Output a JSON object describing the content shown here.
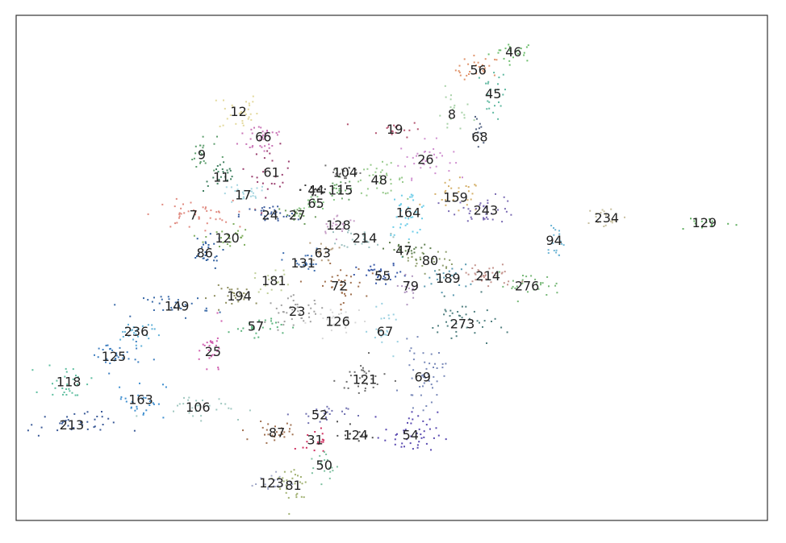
{
  "chart_data": {
    "type": "scatter",
    "title": "",
    "xlabel": "",
    "ylabel": "",
    "axes_visible": false,
    "frame": "box",
    "grid": false,
    "legend": "none",
    "xlim": [
      0,
      100
    ],
    "ylim": [
      0,
      100
    ],
    "clusters": [
      {
        "label": "46",
        "x": 66.2,
        "y": 92.8,
        "color": "#6fbf6f",
        "sx": 1.6,
        "sy": 1.0,
        "n": 22
      },
      {
        "label": "56",
        "x": 61.5,
        "y": 89.2,
        "color": "#e0936b",
        "sx": 1.5,
        "sy": 1.4,
        "n": 26
      },
      {
        "label": "45",
        "x": 63.5,
        "y": 84.5,
        "color": "#5fb8a0",
        "sx": 0.9,
        "sy": 2.5,
        "n": 24
      },
      {
        "label": "8",
        "x": 58.0,
        "y": 80.5,
        "color": "#a8d2a8",
        "sx": 1.4,
        "sy": 2.2,
        "n": 18
      },
      {
        "label": "68",
        "x": 61.7,
        "y": 76.0,
        "color": "#4f5f7f",
        "sx": 0.5,
        "sy": 1.8,
        "n": 12
      },
      {
        "label": "12",
        "x": 29.6,
        "y": 81.0,
        "color": "#e3d99c",
        "sx": 1.3,
        "sy": 2.0,
        "n": 30
      },
      {
        "label": "66",
        "x": 32.9,
        "y": 76.0,
        "color": "#c974b6",
        "sx": 1.6,
        "sy": 1.7,
        "n": 34
      },
      {
        "label": "19",
        "x": 50.4,
        "y": 77.5,
        "color": "#b35470",
        "sx": 1.8,
        "sy": 0.8,
        "n": 18
      },
      {
        "label": "26",
        "x": 54.5,
        "y": 71.5,
        "color": "#cf8fcf",
        "sx": 1.8,
        "sy": 1.8,
        "n": 36
      },
      {
        "label": "9",
        "x": 24.7,
        "y": 72.5,
        "color": "#5e9e6e",
        "sx": 1.0,
        "sy": 2.0,
        "n": 20
      },
      {
        "label": "61",
        "x": 34.0,
        "y": 69.0,
        "color": "#9b3f6f",
        "sx": 1.3,
        "sy": 2.4,
        "n": 24
      },
      {
        "label": "104",
        "x": 43.8,
        "y": 69.0,
        "color": "#707070",
        "sx": 1.5,
        "sy": 1.0,
        "n": 22
      },
      {
        "label": "48",
        "x": 48.3,
        "y": 67.5,
        "color": "#96c98a",
        "sx": 1.7,
        "sy": 1.5,
        "n": 36
      },
      {
        "label": "11",
        "x": 27.3,
        "y": 68.0,
        "color": "#3f7f5f",
        "sx": 1.2,
        "sy": 1.5,
        "n": 22
      },
      {
        "label": "44",
        "x": 39.9,
        "y": 65.5,
        "color": "#3a3a3a",
        "sx": 1.0,
        "sy": 1.0,
        "n": 18
      },
      {
        "label": "115",
        "x": 43.2,
        "y": 65.5,
        "color": "#6ba86b",
        "sx": 1.2,
        "sy": 1.2,
        "n": 22
      },
      {
        "label": "17",
        "x": 30.2,
        "y": 64.5,
        "color": "#a6d6e0",
        "sx": 1.6,
        "sy": 1.0,
        "n": 26
      },
      {
        "label": "159",
        "x": 58.5,
        "y": 64.0,
        "color": "#d4b06a",
        "sx": 1.8,
        "sy": 1.6,
        "n": 28
      },
      {
        "label": "65",
        "x": 39.9,
        "y": 62.8,
        "color": "#8acb8a",
        "sx": 1.0,
        "sy": 1.0,
        "n": 18
      },
      {
        "label": "243",
        "x": 62.5,
        "y": 61.5,
        "color": "#7b6bb3",
        "sx": 2.2,
        "sy": 1.3,
        "n": 36
      },
      {
        "label": "164",
        "x": 52.2,
        "y": 61.0,
        "color": "#6ecde8",
        "sx": 1.4,
        "sy": 2.2,
        "n": 36
      },
      {
        "label": "7",
        "x": 23.6,
        "y": 60.5,
        "color": "#e08a80",
        "sx": 2.6,
        "sy": 1.4,
        "n": 44
      },
      {
        "label": "24",
        "x": 33.8,
        "y": 60.5,
        "color": "#3f5f9f",
        "sx": 2.0,
        "sy": 1.0,
        "n": 30
      },
      {
        "label": "27",
        "x": 37.4,
        "y": 60.5,
        "color": "#6e9e5e",
        "sx": 1.4,
        "sy": 1.0,
        "n": 20
      },
      {
        "label": "234",
        "x": 78.6,
        "y": 60.0,
        "color": "#c8c0a0",
        "sx": 1.4,
        "sy": 1.2,
        "n": 18
      },
      {
        "label": "129",
        "x": 91.6,
        "y": 59.0,
        "color": "#5fae5f",
        "sx": 2.0,
        "sy": 0.8,
        "n": 14
      },
      {
        "label": "128",
        "x": 42.9,
        "y": 58.5,
        "color": "#c8a0c8",
        "sx": 1.4,
        "sy": 1.0,
        "n": 22
      },
      {
        "label": "120",
        "x": 28.1,
        "y": 56.0,
        "color": "#7fae5f",
        "sx": 1.5,
        "sy": 1.5,
        "n": 24
      },
      {
        "label": "214",
        "x": 46.4,
        "y": 56.0,
        "color": "#9cc0c0",
        "sx": 1.6,
        "sy": 1.0,
        "n": 22
      },
      {
        "label": "94",
        "x": 71.6,
        "y": 55.5,
        "color": "#6fb6d6",
        "sx": 0.7,
        "sy": 2.2,
        "n": 18
      },
      {
        "label": "86",
        "x": 25.1,
        "y": 53.0,
        "color": "#2f5f9f",
        "sx": 1.2,
        "sy": 1.6,
        "n": 26
      },
      {
        "label": "47",
        "x": 51.6,
        "y": 53.5,
        "color": "#5e7e4e",
        "sx": 1.5,
        "sy": 1.0,
        "n": 24
      },
      {
        "label": "63",
        "x": 40.8,
        "y": 53.0,
        "color": "#b8a07e",
        "sx": 1.0,
        "sy": 1.0,
        "n": 16
      },
      {
        "label": "80",
        "x": 55.1,
        "y": 51.5,
        "color": "#8f9e6e",
        "sx": 1.5,
        "sy": 1.2,
        "n": 24
      },
      {
        "label": "131",
        "x": 38.2,
        "y": 51.0,
        "color": "#3f6fb0",
        "sx": 1.3,
        "sy": 1.4,
        "n": 22
      },
      {
        "label": "55",
        "x": 48.8,
        "y": 48.5,
        "color": "#3a5aa8",
        "sx": 1.7,
        "sy": 1.1,
        "n": 30
      },
      {
        "label": "214",
        "x": 62.8,
        "y": 48.5,
        "color": "#c4948e",
        "sx": 2.0,
        "sy": 1.3,
        "n": 34
      },
      {
        "label": "189",
        "x": 57.5,
        "y": 48.0,
        "color": "#5a9ab0",
        "sx": 1.4,
        "sy": 1.3,
        "n": 24
      },
      {
        "label": "181",
        "x": 34.3,
        "y": 47.5,
        "color": "#c0d09a",
        "sx": 1.3,
        "sy": 1.2,
        "n": 18
      },
      {
        "label": "72",
        "x": 43.0,
        "y": 46.5,
        "color": "#a0704e",
        "sx": 1.7,
        "sy": 2.0,
        "n": 34
      },
      {
        "label": "79",
        "x": 52.5,
        "y": 46.5,
        "color": "#b096c0",
        "sx": 1.0,
        "sy": 1.2,
        "n": 18
      },
      {
        "label": "276",
        "x": 68.0,
        "y": 46.5,
        "color": "#78b878",
        "sx": 2.3,
        "sy": 1.2,
        "n": 28
      },
      {
        "label": "194",
        "x": 29.7,
        "y": 44.5,
        "color": "#8e8e5e",
        "sx": 2.0,
        "sy": 1.0,
        "n": 26
      },
      {
        "label": "149",
        "x": 21.4,
        "y": 42.5,
        "color": "#3a6aa8",
        "sx": 2.2,
        "sy": 1.2,
        "n": 30
      },
      {
        "label": "23",
        "x": 37.4,
        "y": 41.5,
        "color": "#a0a0a0",
        "sx": 2.0,
        "sy": 1.3,
        "n": 40
      },
      {
        "label": "126",
        "x": 42.8,
        "y": 39.5,
        "color": "#d8d8d8",
        "sx": 1.8,
        "sy": 1.6,
        "n": 26
      },
      {
        "label": "57",
        "x": 31.9,
        "y": 38.5,
        "color": "#5eb47e",
        "sx": 1.8,
        "sy": 1.0,
        "n": 26
      },
      {
        "label": "273",
        "x": 59.4,
        "y": 39.0,
        "color": "#4f7f7f",
        "sx": 2.2,
        "sy": 2.4,
        "n": 40
      },
      {
        "label": "236",
        "x": 16.0,
        "y": 37.5,
        "color": "#5fb0d8",
        "sx": 1.8,
        "sy": 1.2,
        "n": 26
      },
      {
        "label": "67",
        "x": 49.1,
        "y": 37.5,
        "color": "#9ad0e0",
        "sx": 1.0,
        "sy": 2.0,
        "n": 22
      },
      {
        "label": "25",
        "x": 26.2,
        "y": 33.5,
        "color": "#d060b0",
        "sx": 0.7,
        "sy": 2.6,
        "n": 26
      },
      {
        "label": "125",
        "x": 13.0,
        "y": 32.5,
        "color": "#3f7fc0",
        "sx": 1.8,
        "sy": 1.6,
        "n": 30
      },
      {
        "label": "121",
        "x": 46.4,
        "y": 28.0,
        "color": "#6a6a6a",
        "sx": 1.8,
        "sy": 2.0,
        "n": 30
      },
      {
        "label": "69",
        "x": 54.1,
        "y": 28.5,
        "color": "#7888b8",
        "sx": 1.4,
        "sy": 3.0,
        "n": 44
      },
      {
        "label": "118",
        "x": 7.0,
        "y": 27.5,
        "color": "#5ebfa0",
        "sx": 1.6,
        "sy": 1.8,
        "n": 28
      },
      {
        "label": "163",
        "x": 16.6,
        "y": 24.0,
        "color": "#3f8fd0",
        "sx": 1.6,
        "sy": 2.0,
        "n": 28
      },
      {
        "label": "106",
        "x": 24.2,
        "y": 22.5,
        "color": "#a0c8c0",
        "sx": 3.2,
        "sy": 1.2,
        "n": 30
      },
      {
        "label": "52",
        "x": 40.4,
        "y": 21.0,
        "color": "#7070b0",
        "sx": 1.8,
        "sy": 1.0,
        "n": 22
      },
      {
        "label": "213",
        "x": 7.4,
        "y": 19.0,
        "color": "#3a5a98",
        "sx": 3.0,
        "sy": 1.2,
        "n": 34
      },
      {
        "label": "54",
        "x": 52.5,
        "y": 17.0,
        "color": "#5a4ab0",
        "sx": 1.8,
        "sy": 2.2,
        "n": 44
      },
      {
        "label": "87",
        "x": 34.7,
        "y": 17.5,
        "color": "#a07050",
        "sx": 2.4,
        "sy": 1.0,
        "n": 26
      },
      {
        "label": "124",
        "x": 45.2,
        "y": 17.0,
        "color": "#505050",
        "sx": 1.0,
        "sy": 1.4,
        "n": 12
      },
      {
        "label": "31",
        "x": 39.8,
        "y": 16.0,
        "color": "#d03060",
        "sx": 0.8,
        "sy": 1.2,
        "n": 16
      },
      {
        "label": "50",
        "x": 41.0,
        "y": 11.0,
        "color": "#7ec0a0",
        "sx": 1.0,
        "sy": 1.6,
        "n": 20
      },
      {
        "label": "123",
        "x": 34.0,
        "y": 7.5,
        "color": "#a0a8c8",
        "sx": 1.4,
        "sy": 1.0,
        "n": 18
      },
      {
        "label": "81",
        "x": 36.9,
        "y": 7.0,
        "color": "#a0b070",
        "sx": 1.1,
        "sy": 2.4,
        "n": 28
      }
    ]
  }
}
